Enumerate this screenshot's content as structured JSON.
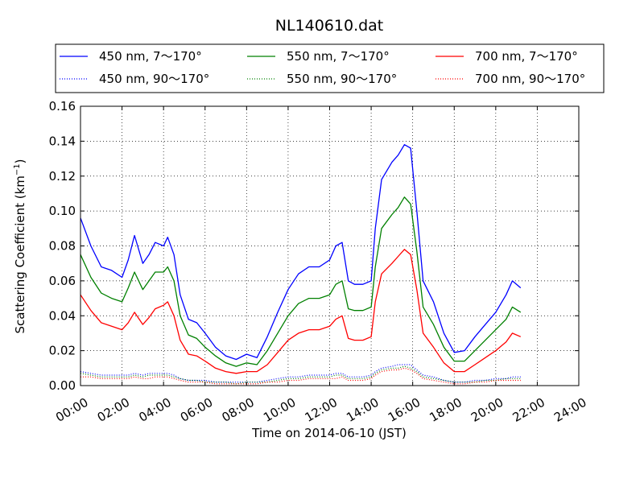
{
  "chart_data": {
    "type": "line",
    "title": "NL140610.dat",
    "xlabel": "Time on 2014-06-10 (JST)",
    "ylabel": "Scattering Coefficient (km",
    "ylabel_sup": "−1",
    "ylabel_close": ")",
    "xlim": [
      0,
      24
    ],
    "ylim": [
      0,
      0.16
    ],
    "grid": true,
    "legend_position": "top",
    "x_ticks": [
      0,
      2,
      4,
      6,
      8,
      10,
      12,
      14,
      16,
      18,
      20,
      22,
      24
    ],
    "x_tick_labels": [
      "00:00",
      "02:00",
      "04:00",
      "06:00",
      "08:00",
      "10:00",
      "12:00",
      "14:00",
      "16:00",
      "18:00",
      "20:00",
      "22:00",
      "24:00"
    ],
    "y_ticks": [
      0,
      0.02,
      0.04,
      0.06,
      0.08,
      0.1,
      0.12,
      0.14,
      0.16
    ],
    "y_tick_labels": [
      "0.00",
      "0.02",
      "0.04",
      "0.06",
      "0.08",
      "0.10",
      "0.12",
      "0.14",
      "0.16"
    ],
    "series": [
      {
        "name": "450 nm, 7～170°",
        "color": "#0000ff",
        "style": "solid",
        "key": "b7"
      },
      {
        "name": "550 nm, 7～170°",
        "color": "#008000",
        "style": "solid",
        "key": "g7"
      },
      {
        "name": "700 nm, 7～170°",
        "color": "#ff0000",
        "style": "solid",
        "key": "r7"
      },
      {
        "name": "450 nm, 90～170°",
        "color": "#0000ff",
        "style": "dotted",
        "key": "b90"
      },
      {
        "name": "550 nm, 90～170°",
        "color": "#008000",
        "style": "dotted",
        "key": "g90"
      },
      {
        "name": "700 nm, 90～170°",
        "color": "#ff0000",
        "style": "dotted",
        "key": "r90"
      }
    ],
    "x": [
      0,
      0.5,
      1,
      1.5,
      2,
      2.3,
      2.6,
      3,
      3.3,
      3.6,
      4,
      4.2,
      4.5,
      4.8,
      5.2,
      5.6,
      6,
      6.5,
      7,
      7.5,
      8,
      8.5,
      9,
      9.5,
      10,
      10.5,
      11,
      11.5,
      12,
      12.3,
      12.6,
      12.9,
      13.2,
      13.6,
      14,
      14.2,
      14.5,
      15,
      15.3,
      15.6,
      15.9,
      16.2,
      16.5,
      17,
      17.5,
      18,
      18.5,
      19,
      19.5,
      20,
      20.5,
      20.8,
      21.2
    ],
    "values": {
      "b7": [
        0.096,
        0.08,
        0.068,
        0.066,
        0.062,
        0.072,
        0.086,
        0.07,
        0.075,
        0.082,
        0.08,
        0.085,
        0.075,
        0.052,
        0.038,
        0.036,
        0.03,
        0.022,
        0.017,
        0.015,
        0.018,
        0.016,
        0.028,
        0.042,
        0.055,
        0.064,
        0.068,
        0.068,
        0.072,
        0.08,
        0.082,
        0.06,
        0.058,
        0.058,
        0.06,
        0.09,
        0.118,
        0.128,
        0.132,
        0.138,
        0.136,
        0.1,
        0.06,
        0.048,
        0.03,
        0.019,
        0.02,
        0.028,
        0.035,
        0.042,
        0.052,
        0.06,
        0.056
      ],
      "g7": [
        0.075,
        0.062,
        0.053,
        0.05,
        0.048,
        0.056,
        0.065,
        0.055,
        0.06,
        0.065,
        0.065,
        0.068,
        0.06,
        0.04,
        0.029,
        0.027,
        0.022,
        0.017,
        0.013,
        0.011,
        0.013,
        0.012,
        0.02,
        0.03,
        0.04,
        0.047,
        0.05,
        0.05,
        0.052,
        0.058,
        0.06,
        0.044,
        0.043,
        0.043,
        0.045,
        0.068,
        0.09,
        0.098,
        0.102,
        0.108,
        0.104,
        0.077,
        0.045,
        0.035,
        0.022,
        0.014,
        0.014,
        0.02,
        0.026,
        0.032,
        0.038,
        0.045,
        0.042
      ],
      "r7": [
        0.052,
        0.043,
        0.036,
        0.034,
        0.032,
        0.036,
        0.042,
        0.035,
        0.039,
        0.044,
        0.046,
        0.048,
        0.04,
        0.026,
        0.018,
        0.017,
        0.014,
        0.01,
        0.008,
        0.007,
        0.008,
        0.008,
        0.012,
        0.019,
        0.026,
        0.03,
        0.032,
        0.032,
        0.034,
        0.038,
        0.04,
        0.027,
        0.026,
        0.026,
        0.028,
        0.048,
        0.064,
        0.07,
        0.074,
        0.078,
        0.075,
        0.055,
        0.03,
        0.022,
        0.013,
        0.008,
        0.008,
        0.012,
        0.016,
        0.02,
        0.025,
        0.03,
        0.028
      ],
      "b90": [
        0.008,
        0.007,
        0.006,
        0.006,
        0.006,
        0.006,
        0.007,
        0.006,
        0.007,
        0.007,
        0.007,
        0.007,
        0.006,
        0.004,
        0.003,
        0.003,
        0.003,
        0.002,
        0.002,
        0.002,
        0.002,
        0.002,
        0.003,
        0.004,
        0.005,
        0.005,
        0.006,
        0.006,
        0.006,
        0.007,
        0.007,
        0.005,
        0.005,
        0.005,
        0.006,
        0.008,
        0.01,
        0.011,
        0.012,
        0.012,
        0.012,
        0.009,
        0.006,
        0.005,
        0.003,
        0.002,
        0.002,
        0.003,
        0.003,
        0.004,
        0.004,
        0.005,
        0.005
      ],
      "g90": [
        0.007,
        0.006,
        0.005,
        0.005,
        0.005,
        0.005,
        0.006,
        0.005,
        0.006,
        0.006,
        0.006,
        0.006,
        0.005,
        0.004,
        0.003,
        0.003,
        0.002,
        0.002,
        0.002,
        0.001,
        0.002,
        0.002,
        0.002,
        0.003,
        0.004,
        0.004,
        0.005,
        0.005,
        0.005,
        0.006,
        0.006,
        0.004,
        0.004,
        0.004,
        0.005,
        0.007,
        0.009,
        0.01,
        0.01,
        0.011,
        0.01,
        0.008,
        0.005,
        0.004,
        0.003,
        0.002,
        0.002,
        0.002,
        0.003,
        0.003,
        0.004,
        0.004,
        0.004
      ],
      "r90": [
        0.005,
        0.005,
        0.004,
        0.004,
        0.004,
        0.004,
        0.005,
        0.004,
        0.004,
        0.005,
        0.005,
        0.005,
        0.004,
        0.003,
        0.002,
        0.002,
        0.002,
        0.001,
        0.001,
        0.001,
        0.001,
        0.001,
        0.002,
        0.002,
        0.003,
        0.003,
        0.004,
        0.004,
        0.004,
        0.004,
        0.005,
        0.003,
        0.003,
        0.003,
        0.004,
        0.006,
        0.008,
        0.009,
        0.009,
        0.01,
        0.009,
        0.007,
        0.004,
        0.003,
        0.002,
        0.001,
        0.001,
        0.002,
        0.002,
        0.003,
        0.003,
        0.003,
        0.003
      ]
    }
  }
}
